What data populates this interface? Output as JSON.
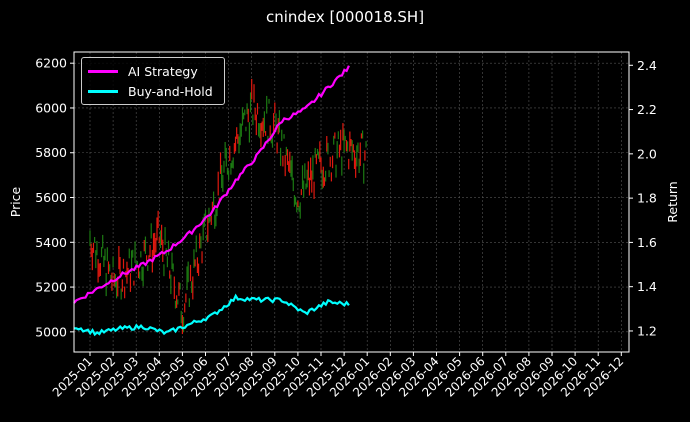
{
  "chart_data": {
    "type": "line",
    "title": "cnindex [000018.SH]",
    "xlabel": "",
    "ylabel": "Price",
    "ylabel_right": "Return",
    "ylim": [
      4910,
      6250
    ],
    "ylim_right": [
      1.105,
      2.46
    ],
    "yticks": [
      5000,
      5200,
      5400,
      5600,
      5800,
      6000,
      6200
    ],
    "yticks_right": [
      1.2,
      1.4,
      1.6,
      1.8,
      2.0,
      2.2,
      2.4
    ],
    "xticks": [
      "2025-01",
      "2025-02",
      "2025-03",
      "2025-04",
      "2025-05",
      "2025-06",
      "2025-07",
      "2025-08",
      "2025-09",
      "2025-10",
      "2025-11",
      "2025-12",
      "2026-01",
      "2026-02",
      "2026-03",
      "2026-04",
      "2026-05",
      "2026-06",
      "2026-07",
      "2026-08",
      "2026-09",
      "2026-10",
      "2026-11",
      "2026-12"
    ],
    "grid": true,
    "legend_position": "upper left",
    "x": [
      "2025-01",
      "2025-02",
      "2025-03",
      "2025-04",
      "2025-05",
      "2025-06",
      "2025-07",
      "2025-08",
      "2025-09",
      "2025-10",
      "2025-11",
      "2025-12",
      "2026-01"
    ],
    "series": [
      {
        "name": "Price (candles)",
        "axis": "left",
        "values": [
          5420,
          5230,
          5300,
          5420,
          5100,
          5450,
          5780,
          6000,
          5920,
          5600,
          5750,
          5820,
          5790
        ]
      },
      {
        "name": "AI Strategy",
        "axis": "right",
        "color": "#ff00ff",
        "values": [
          1.33,
          1.39,
          1.45,
          1.5,
          1.56,
          1.64,
          1.74,
          1.88,
          2.0,
          2.15,
          2.2,
          2.3,
          2.4
        ]
      },
      {
        "name": "Buy-and-Hold",
        "axis": "right",
        "color": "#00ffff",
        "values": [
          1.22,
          1.19,
          1.21,
          1.22,
          1.19,
          1.23,
          1.27,
          1.35,
          1.34,
          1.34,
          1.28,
          1.33,
          1.32
        ]
      }
    ]
  },
  "legend": [
    {
      "label": "AI Strategy",
      "color": "#ff00ff"
    },
    {
      "label": "Buy-and-Hold",
      "color": "#00ffff"
    }
  ]
}
